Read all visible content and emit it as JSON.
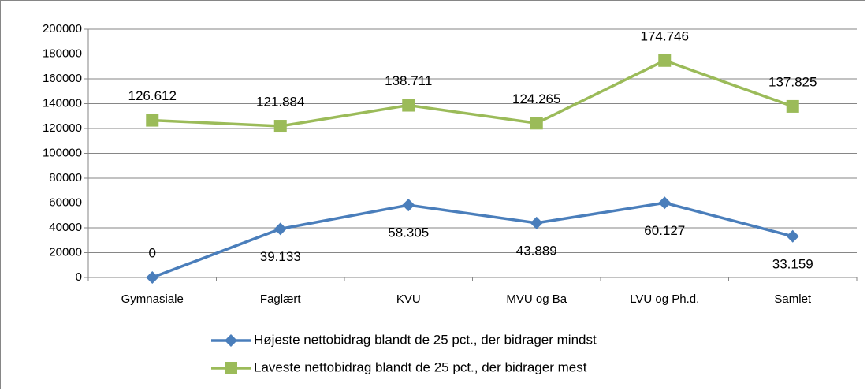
{
  "chart_data": {
    "type": "line",
    "categories": [
      "Gymnasiale",
      "Faglært",
      "KVU",
      "MVU og Ba",
      "LVU og Ph.d.",
      "Samlet"
    ],
    "series": [
      {
        "name": "Højeste nettobidrag blandt de 25 pct., der bidrager mindst",
        "color": "#4a7ebb",
        "marker": "diamond",
        "values": [
          0,
          39133,
          58305,
          43889,
          60127,
          33159
        ],
        "value_labels": [
          "0",
          "39.133",
          "58.305",
          "43.889",
          "60.127",
          "33.159"
        ]
      },
      {
        "name": "Laveste nettobidrag blandt de 25 pct., der bidrager mest",
        "color": "#9bbb59",
        "marker": "square",
        "values": [
          126612,
          121884,
          138711,
          124265,
          174746,
          137825
        ],
        "value_labels": [
          "126.612",
          "121.884",
          "138.711",
          "124.265",
          "174.746",
          "137.825"
        ]
      }
    ],
    "ylim": [
      0,
      200000
    ],
    "yticks": [
      0,
      20000,
      40000,
      60000,
      80000,
      100000,
      120000,
      140000,
      160000,
      180000,
      200000
    ],
    "grid": true,
    "legend": "bottom"
  }
}
